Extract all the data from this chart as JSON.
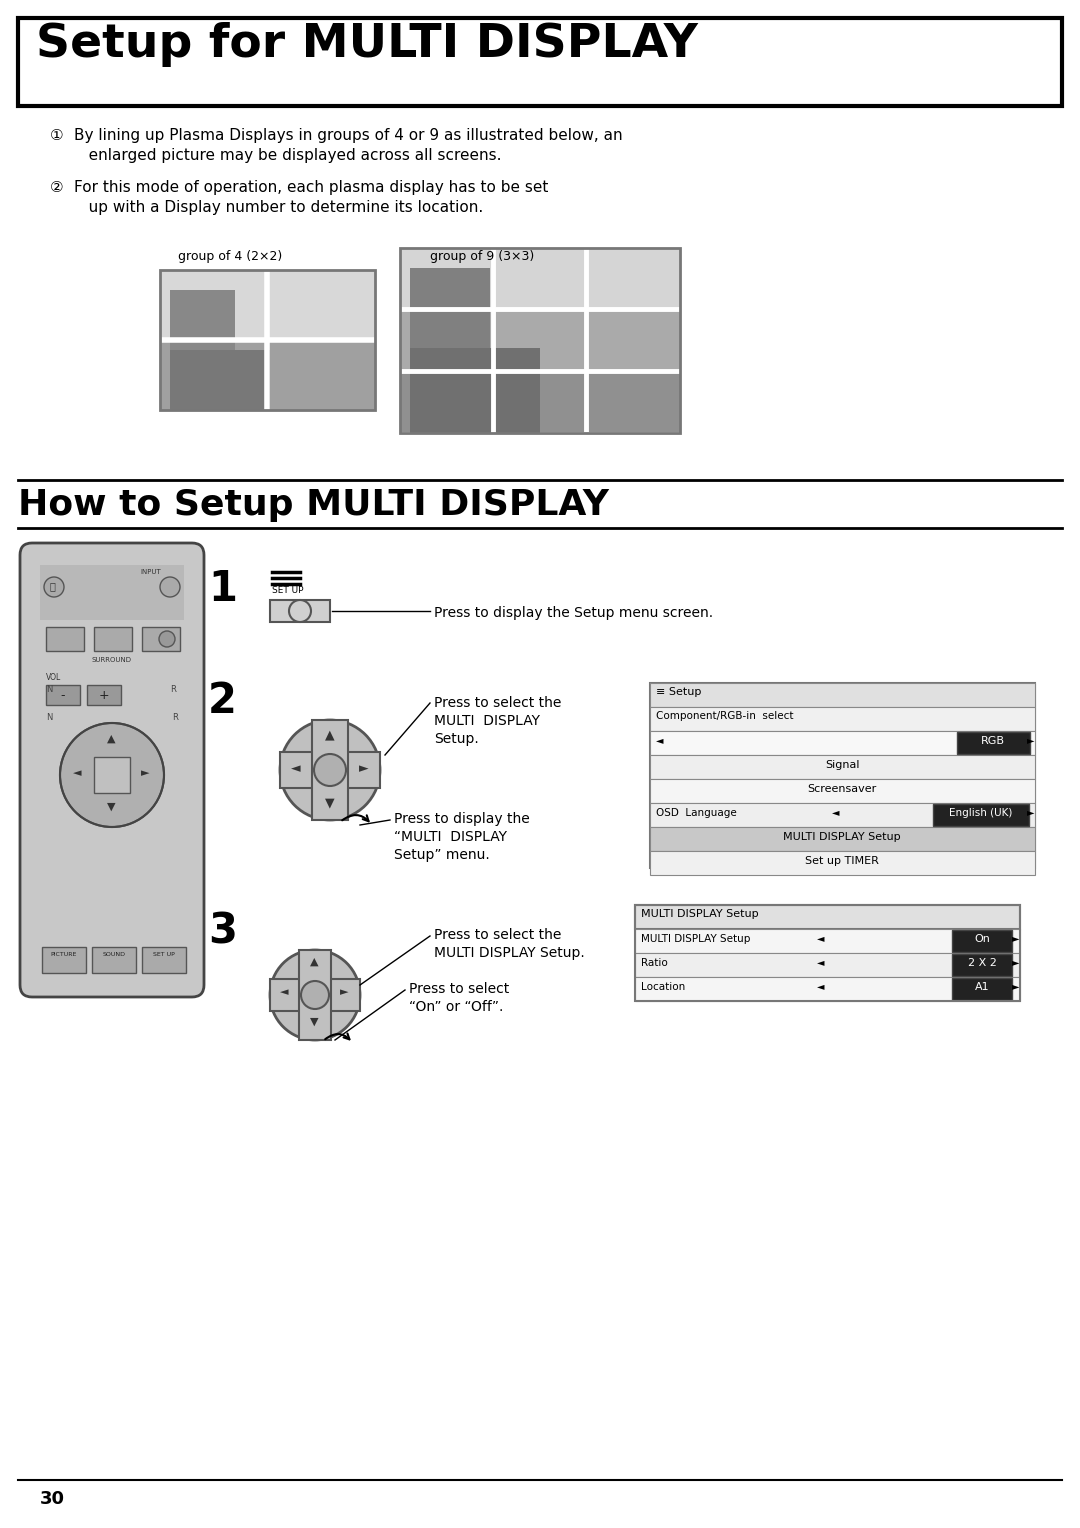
{
  "title": "Setup for MULTI DISPLAY",
  "section2_title": "How to Setup MULTI DISPLAY",
  "bg_color": "#ffffff",
  "page_number": "30",
  "bullet1_line1": "By lining up Plasma Displays in groups of 4 or 9 as illustrated below, an",
  "bullet1_line2": "   enlarged picture may be displayed across all screens.",
  "bullet2_line1": "For this mode of operation, each plasma display has to be set",
  "bullet2_line2": "   up with a Display number to determine its location.",
  "group4_label": "group of 4 (2×2)",
  "group9_label": "group of 9 (3×3)",
  "step1_text": "Press to display the Setup menu screen.",
  "step2_text1": "Press to select the",
  "step2_text2": "MULTI  DISPLAY",
  "step2_text3": "Setup.",
  "step2_text4": "Press to display the",
  "step2_text5": "“MULTI  DISPLAY",
  "step2_text6": "Setup” menu.",
  "step3_text1": "Press to select the",
  "step3_text2": "MULTI DISPLAY Setup.",
  "step3_text3": "Press to select",
  "step3_text4": "“On” or “Off”."
}
